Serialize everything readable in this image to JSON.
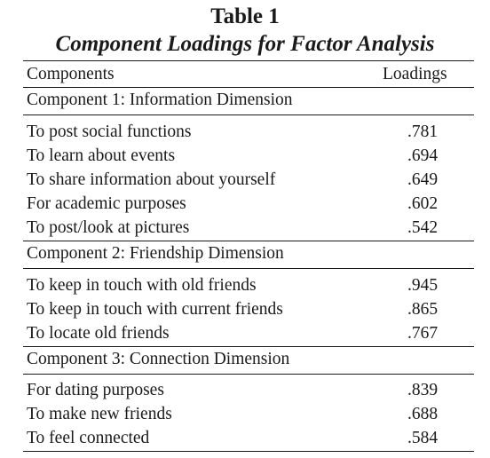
{
  "table": {
    "number": "Table 1",
    "title": "Component Loadings for Factor Analysis",
    "header": {
      "components": "Components",
      "loadings": "Loadings"
    },
    "components": [
      {
        "heading": "Component 1: Information Dimension",
        "items": [
          {
            "label": "To post social functions",
            "loading": ".781"
          },
          {
            "label": "To learn about events",
            "loading": ".694"
          },
          {
            "label": "To share information about yourself",
            "loading": ".649"
          },
          {
            "label": "For academic purposes",
            "loading": ".602"
          },
          {
            "label": "To post/look at pictures",
            "loading": ".542"
          }
        ]
      },
      {
        "heading": "Component 2: Friendship Dimension",
        "items": [
          {
            "label": "To keep in touch with old friends",
            "loading": ".945"
          },
          {
            "label": "To keep in touch with current friends",
            "loading": ".865"
          },
          {
            "label": "To locate old friends",
            "loading": ".767"
          }
        ]
      },
      {
        "heading": "Component 3: Connection Dimension",
        "items": [
          {
            "label": "For dating purposes",
            "loading": ".839"
          },
          {
            "label": "To make new friends",
            "loading": ".688"
          },
          {
            "label": "To feel connected",
            "loading": ".584"
          }
        ]
      }
    ]
  }
}
